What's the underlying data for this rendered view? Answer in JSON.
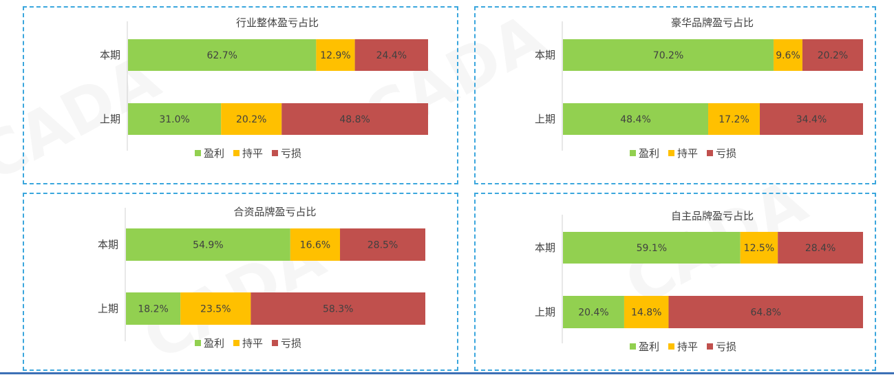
{
  "legend": {
    "labels": [
      "盈利",
      "持平",
      "亏损"
    ]
  },
  "colors": {
    "profit": "#92d050",
    "even": "#ffc000",
    "loss": "#c0504d",
    "border": "#3aa6dd"
  },
  "chart_data": [
    {
      "type": "bar",
      "stacked": true,
      "orientation": "horizontal",
      "percent_labels": true,
      "title": "行业整体盈亏占比",
      "categories": [
        "本期",
        "上期"
      ],
      "series": [
        {
          "name": "盈利",
          "values": [
            62.7,
            31.0
          ],
          "labels": [
            "62.7%",
            "31.0%"
          ]
        },
        {
          "name": "持平",
          "values": [
            12.9,
            20.2
          ],
          "labels": [
            "12.9%",
            "20.2%"
          ]
        },
        {
          "name": "亏损",
          "values": [
            24.4,
            48.8
          ],
          "labels": [
            "24.4%",
            "48.8%"
          ]
        }
      ],
      "legend": "bottom"
    },
    {
      "type": "bar",
      "stacked": true,
      "orientation": "horizontal",
      "percent_labels": true,
      "title": "豪华品牌盈亏占比",
      "categories": [
        "本期",
        "上期"
      ],
      "series": [
        {
          "name": "盈利",
          "values": [
            70.2,
            48.4
          ],
          "labels": [
            "70.2%",
            "48.4%"
          ]
        },
        {
          "name": "持平",
          "values": [
            9.6,
            17.2
          ],
          "labels": [
            "9.6%",
            "17.2%"
          ]
        },
        {
          "name": "亏损",
          "values": [
            20.2,
            34.4
          ],
          "labels": [
            "20.2%",
            "34.4%"
          ]
        }
      ],
      "legend": "bottom"
    },
    {
      "type": "bar",
      "stacked": true,
      "orientation": "horizontal",
      "percent_labels": true,
      "title": "合资品牌盈亏占比",
      "categories": [
        "本期",
        "上期"
      ],
      "series": [
        {
          "name": "盈利",
          "values": [
            54.9,
            18.2
          ],
          "labels": [
            "54.9%",
            "18.2%"
          ]
        },
        {
          "name": "持平",
          "values": [
            16.6,
            23.5
          ],
          "labels": [
            "16.6%",
            "23.5%"
          ]
        },
        {
          "name": "亏损",
          "values": [
            28.5,
            58.3
          ],
          "labels": [
            "28.5%",
            "58.3%"
          ]
        }
      ],
      "legend": "bottom"
    },
    {
      "type": "bar",
      "stacked": true,
      "orientation": "horizontal",
      "percent_labels": true,
      "title": "自主品牌盈亏占比",
      "categories": [
        "本期",
        "上期"
      ],
      "series": [
        {
          "name": "盈利",
          "values": [
            59.1,
            20.4
          ],
          "labels": [
            "59.1%",
            "20.4%"
          ]
        },
        {
          "name": "持平",
          "values": [
            12.5,
            14.8
          ],
          "labels": [
            "12.5%",
            "14.8%"
          ]
        },
        {
          "name": "亏损",
          "values": [
            28.4,
            64.8
          ],
          "labels": [
            "28.4%",
            "64.8%"
          ]
        }
      ],
      "legend": "bottom"
    }
  ]
}
